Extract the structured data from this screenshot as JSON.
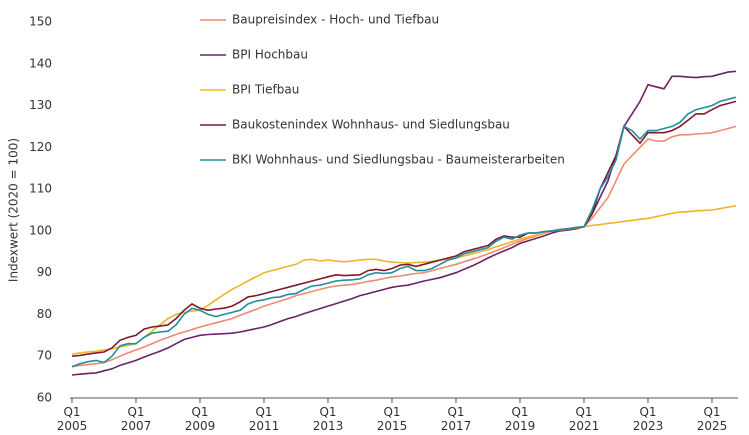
{
  "chart_data": {
    "type": "line",
    "y_label": "Indexwert (2020 = 100)",
    "categories": [
      "Q1\n2005",
      null,
      null,
      null,
      null,
      null,
      null,
      null,
      "Q1\n2007",
      null,
      null,
      null,
      null,
      null,
      null,
      null,
      "Q1\n2009",
      null,
      null,
      null,
      null,
      null,
      null,
      null,
      "Q1\n2011",
      null,
      null,
      null,
      null,
      null,
      null,
      null,
      "Q1\n2013",
      null,
      null,
      null,
      null,
      null,
      null,
      null,
      "Q1\n2015",
      null,
      null,
      null,
      null,
      null,
      null,
      null,
      "Q1\n2017",
      null,
      null,
      null,
      null,
      null,
      null,
      null,
      "Q1\n2019",
      null,
      null,
      null,
      null,
      null,
      null,
      null,
      "Q1\n2021",
      null,
      null,
      null,
      null,
      null,
      null,
      null,
      "Q1\n2023",
      null,
      null,
      null,
      null,
      null,
      null,
      null,
      "Q1\n2025",
      null,
      null,
      null
    ],
    "ylim": [
      60,
      150
    ],
    "yticks": [
      60,
      70,
      80,
      90,
      100,
      110,
      120,
      130,
      140,
      150
    ],
    "grid": false,
    "series": [
      {
        "name": "Baupreisindex - Hoch- und Tiefbau",
        "color": "#f08a70",
        "values": [
          67.5,
          67.8,
          68,
          68.2,
          68.5,
          69.2,
          70,
          70.8,
          71.5,
          72.2,
          73,
          73.8,
          74.5,
          75.2,
          75.8,
          76.4,
          77,
          77.5,
          78,
          78.5,
          79,
          79.8,
          80.5,
          81.2,
          82,
          82.6,
          83.2,
          83.8,
          84.5,
          85,
          85.5,
          86,
          86.5,
          86.8,
          87,
          87.2,
          87.5,
          87.9,
          88.2,
          88.6,
          89,
          89.2,
          89.5,
          89.8,
          90,
          90.5,
          91,
          91.5,
          92,
          92.6,
          93.2,
          93.8,
          94.5,
          95.2,
          96,
          96.8,
          97.5,
          98.2,
          98.8,
          99.4,
          100,
          100.2,
          100.5,
          100.8,
          101,
          103,
          105.5,
          108,
          112,
          116,
          118,
          120,
          122,
          121.5,
          121.5,
          122.5,
          123,
          123,
          123.2,
          123.3,
          123.5,
          124,
          124.5,
          125
        ]
      },
      {
        "name": "BPI Hochbau",
        "color": "#6a2367",
        "values": [
          65.5,
          65.7,
          65.9,
          66,
          66.5,
          67,
          67.8,
          68.4,
          69,
          69.8,
          70.5,
          71.2,
          72,
          73,
          74,
          74.5,
          75,
          75.2,
          75.3,
          75.4,
          75.5,
          75.8,
          76.2,
          76.6,
          77,
          77.6,
          78.3,
          79,
          79.5,
          80.2,
          80.8,
          81.4,
          82,
          82.6,
          83.2,
          83.8,
          84.5,
          85,
          85.5,
          86,
          86.5,
          86.8,
          87,
          87.5,
          88,
          88.4,
          88.8,
          89.4,
          90,
          90.8,
          91.6,
          92.5,
          93.5,
          94.4,
          95.2,
          96,
          97,
          97.6,
          98.2,
          98.8,
          99.5,
          100,
          100.2,
          100.5,
          101,
          104,
          108,
          112,
          118,
          125,
          128,
          131,
          135,
          134.5,
          134,
          137,
          137,
          136.8,
          136.7,
          136.9,
          137,
          137.5,
          138,
          138.2
        ]
      },
      {
        "name": "BPI Tiefbau",
        "color": "#f0b428",
        "values": [
          70.5,
          70.8,
          71,
          71.2,
          71.5,
          71.8,
          72.2,
          72.6,
          73,
          74.5,
          76,
          77.5,
          79,
          80,
          80.5,
          80.8,
          81,
          82.2,
          83.5,
          84.8,
          86,
          87,
          88,
          89,
          90,
          90.5,
          91,
          91.5,
          92,
          93,
          93.2,
          92.8,
          93,
          92.8,
          92.6,
          92.8,
          93,
          93.2,
          93.2,
          92.8,
          92.5,
          92.4,
          92.3,
          92.4,
          92.5,
          92.7,
          93,
          93.2,
          93.5,
          94,
          94.5,
          95,
          95.5,
          96.2,
          96.8,
          97.4,
          98,
          98.5,
          99,
          99.5,
          100,
          100.2,
          100.4,
          100.7,
          101,
          101.3,
          101.5,
          101.8,
          102,
          102.3,
          102.5,
          102.8,
          103,
          103.4,
          103.8,
          104.2,
          104.5,
          104.6,
          104.8,
          104.9,
          105,
          105.3,
          105.7,
          106
        ]
      },
      {
        "name": "Baukostenindex Wohnhaus- und Siedlungsbau",
        "color": "#7e1a2c",
        "values": [
          70,
          70.2,
          70.5,
          70.8,
          71,
          72,
          73.8,
          74.5,
          75,
          76.5,
          77,
          77.2,
          77.5,
          79,
          81,
          82.5,
          81.5,
          81,
          81.3,
          81.5,
          82,
          83,
          84.2,
          84.5,
          85,
          85.5,
          86,
          86.5,
          87,
          87.5,
          88,
          88.5,
          89,
          89.5,
          89.3,
          89.4,
          89.5,
          90.5,
          90.8,
          90.5,
          91,
          91.8,
          92,
          91.5,
          92,
          92.5,
          93,
          93.5,
          94,
          95,
          95.5,
          96,
          96.5,
          98,
          98.8,
          98.5,
          98.5,
          99.5,
          99.5,
          99.8,
          100,
          100.3,
          100.5,
          100.8,
          101,
          104,
          110,
          114,
          118,
          125,
          123,
          121,
          123.5,
          123.5,
          123.5,
          124,
          125,
          126.5,
          128,
          128,
          129,
          130,
          130.5,
          131
        ]
      },
      {
        "name": "BKI Wohnhaus- und Siedlungsbau - Baumeisterarbeiten",
        "color": "#1f8fa0",
        "values": [
          67.5,
          68.2,
          68.7,
          69,
          68.5,
          70,
          72.5,
          73,
          73,
          74.5,
          75.5,
          75.8,
          76,
          77.5,
          80,
          81.5,
          81,
          80,
          79.5,
          80,
          80.5,
          81,
          82.5,
          83.2,
          83.5,
          84,
          84.2,
          84.8,
          85,
          86,
          86.8,
          87,
          87.5,
          88,
          88.2,
          88.3,
          88.5,
          89.5,
          90,
          89.8,
          90,
          91,
          91.5,
          90.5,
          90.5,
          91,
          92,
          93,
          93.5,
          94.5,
          95,
          95.5,
          96,
          97.5,
          98.5,
          98,
          99,
          99.5,
          99.5,
          99.8,
          100,
          100.3,
          100.5,
          100.8,
          101,
          105,
          110,
          113,
          117,
          125,
          124,
          122,
          124,
          124,
          124.5,
          125,
          126,
          128,
          129,
          129.5,
          130,
          131,
          131.5,
          132
        ]
      }
    ]
  }
}
